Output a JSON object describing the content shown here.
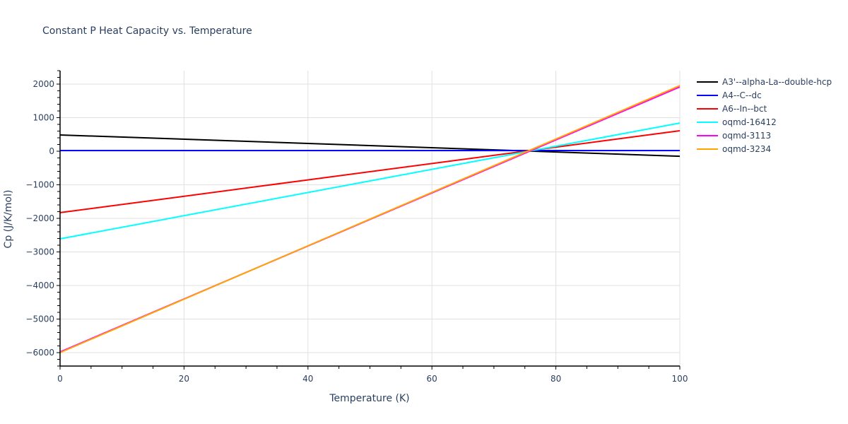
{
  "chart_data": {
    "type": "line",
    "title": "Constant P Heat Capacity vs. Temperature",
    "xlabel": "Temperature (K)",
    "ylabel": "Cp (J/K/mol)",
    "xlim": [
      0,
      100
    ],
    "ylim": [
      -6400,
      2400
    ],
    "x_ticks": [
      0,
      20,
      40,
      60,
      80,
      100
    ],
    "y_ticks": [
      2000,
      1000,
      0,
      -1000,
      -2000,
      -3000,
      -4000,
      -5000,
      -6000
    ],
    "y_tick_labels": [
      "2000",
      "1000",
      "0",
      "−1000",
      "−2000",
      "−3000",
      "−4000",
      "−5000",
      "−6000"
    ],
    "grid": true,
    "legend_position": "right",
    "x": [
      0,
      100
    ],
    "series": [
      {
        "name": "A3'--alpha-La--double-hcp",
        "color": "#000000",
        "values": [
          485,
          -150
        ]
      },
      {
        "name": "A4--C--dc",
        "color": "#0000ff",
        "values": [
          20,
          20
        ]
      },
      {
        "name": "A6--In--bct",
        "color": "#ff0000",
        "values": [
          -1830,
          610
        ]
      },
      {
        "name": "oqmd-16412",
        "color": "#00ffff",
        "values": [
          -2610,
          840
        ]
      },
      {
        "name": "oqmd-3113",
        "color": "#ff00ff",
        "values": [
          -5980,
          1915
        ]
      },
      {
        "name": "oqmd-3234",
        "color": "#ffa500",
        "values": [
          -6000,
          1955
        ]
      }
    ]
  }
}
